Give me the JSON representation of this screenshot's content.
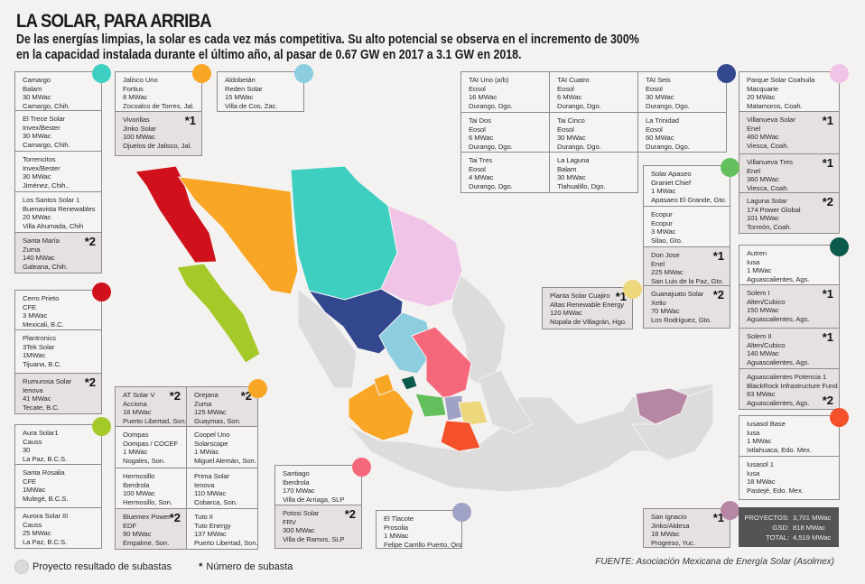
{
  "header": {
    "title": "LA SOLAR, PARA ARRIBA",
    "subtitle_line1": "De las energías limpias, la solar es cada vez más competitiva. Su alto potencial se observa en el incremento de 300%",
    "subtitle_line2": "en la capacidad instalada durante el último año, al pasar de 0.67 GW en 2017 a 3.1 GW en 2018."
  },
  "groups": [
    {
      "state": "Chihuahua",
      "color": "#3ecfc1",
      "items": [
        {
          "lines": [
            "Camargo",
            "Balam",
            "30 MWac",
            "Camargo, Chih."
          ],
          "auction": ""
        },
        {
          "lines": [
            "El Trece Solar",
            "Invex/Bester",
            "30 MWac",
            "Camargo, Chih."
          ],
          "auction": ""
        },
        {
          "lines": [
            "Torrencitos",
            "Invex/Bester",
            "30 MWac",
            "Jiménez, Chih.."
          ],
          "auction": ""
        },
        {
          "lines": [
            "Los Santos Solar 1",
            "Buenavista Renewables",
            "20 MWac",
            "Villa Ahumada, Chih"
          ],
          "auction": ""
        },
        {
          "lines": [
            "Santa María",
            "Zuma",
            "140 MWac",
            "Galeana, Chih."
          ],
          "auction": "*2"
        }
      ]
    },
    {
      "state": "Jalisco",
      "color": "#f8a624",
      "items": [
        {
          "lines": [
            "Jalisco Uno",
            "Fortius",
            "8 MWac",
            "Zocoalco de Torres, Jal."
          ],
          "auction": ""
        },
        {
          "lines": [
            "Vivorillas",
            "Jinko Solar",
            "100 MWac",
            "Ojuelos de Jalisco, Jal."
          ],
          "auction": "*1"
        }
      ]
    },
    {
      "state": "Zacatecas",
      "color": "#8ccde0",
      "items": [
        {
          "lines": [
            "Aldobetán",
            "Reden Solar",
            "15 MWac",
            "Villa de Cos, Zac."
          ],
          "auction": ""
        }
      ]
    },
    {
      "state": "Durango",
      "color": "#33478f",
      "items": [
        {
          "lines": [
            "TAI Uno (a/b)",
            "Eosol",
            "16 MWac",
            "Durango, Dgo."
          ],
          "auction": ""
        },
        {
          "lines": [
            "TAI Cuatro",
            "Eosol",
            "6 MWac",
            "Durango, Dgo."
          ],
          "auction": ""
        },
        {
          "lines": [
            "TAI Seis",
            "Eosol",
            "30 MWac",
            "Durango, Dgo."
          ],
          "auction": ""
        },
        {
          "lines": [
            "Tai Dos",
            "Eosol",
            "6 MWac",
            "Durango, Dgo."
          ],
          "auction": ""
        },
        {
          "lines": [
            "Tai Cinco",
            "Eosol",
            "30 MWac",
            "Durango, Dgo."
          ],
          "auction": ""
        },
        {
          "lines": [
            "La Trinidad",
            "Eosol",
            "60 MWac",
            "Durango, Dgo."
          ],
          "auction": ""
        },
        {
          "lines": [
            "Tai Tres",
            "Eosol",
            "4 MWac",
            "Durango, Dgo."
          ],
          "auction": ""
        },
        {
          "lines": [
            "La Laguna",
            "Balam",
            "30 MWac",
            "Tlahualillo, Dgo."
          ],
          "auction": ""
        }
      ]
    },
    {
      "state": "Coahuila",
      "color": "#f0c4e6",
      "items": [
        {
          "lines": [
            "Parque Solar Coahuila",
            "Macquarie",
            "20 MWac",
            "Matamoros, Coah."
          ],
          "auction": ""
        },
        {
          "lines": [
            "Villanueva Solar",
            "Enel",
            "460 MWac",
            "Viesca, Coah."
          ],
          "auction": "*1"
        },
        {
          "lines": [
            "Villanueva Tres",
            "Enel",
            "360 MWac",
            "Viesca, Coah."
          ],
          "auction": "*1"
        },
        {
          "lines": [
            "Laguna Solar",
            "174 Power Global",
            "101 MWac",
            "Torreón, Coah."
          ],
          "auction": "*2"
        }
      ]
    },
    {
      "state": "Guanajuato",
      "color": "#63c05d",
      "items": [
        {
          "lines": [
            "Solar Apaseo",
            "Graniet Chief",
            "1 MWac",
            "Apasaeo El Grande, Gto."
          ],
          "auction": ""
        },
        {
          "lines": [
            "Ecopur",
            "Ecopur",
            "3 MWac",
            "Silao, Gto."
          ],
          "auction": ""
        },
        {
          "lines": [
            "Don Jose",
            "Enel",
            "225 MWac",
            "San Luis de la Paz, Gto."
          ],
          "auction": "*1"
        },
        {
          "lines": [
            "Guanajuato Solar",
            "Xelio",
            "70 MWac",
            "Los Rodríguez, Gto."
          ],
          "auction": "*2"
        }
      ]
    },
    {
      "state": "Hidalgo",
      "color": "#ecd77c",
      "items": [
        {
          "lines": [
            "Planta Solar Cuajiro",
            "Altas Renewable Energy",
            "120 MWac",
            "Nopala de Villagrán, Hgo."
          ],
          "auction": "*1"
        }
      ]
    },
    {
      "state": "Aguascalientes",
      "color": "#0b5a4b",
      "items": [
        {
          "lines": [
            "Autren",
            "Iusa",
            "1 MWac",
            "Aguascalientes, Ags."
          ],
          "auction": ""
        },
        {
          "lines": [
            "Solem I",
            "Alten/Cubico",
            "150 MWac",
            "Aguascalientes, Ags."
          ],
          "auction": "*1"
        },
        {
          "lines": [
            "Solem II",
            "Alten/Cubico",
            "140 MWac",
            "Aguascalientes, Ags."
          ],
          "auction": "*1"
        },
        {
          "lines": [
            "Aguascalientes Potencia 1",
            "BlackRock Infrastructure Fund II",
            "63 MWac",
            "Aguascalientes, Ags."
          ],
          "auction": "*2",
          "auction_bottom": true
        }
      ]
    },
    {
      "state": "Baja California",
      "color": "#d0101b",
      "items": [
        {
          "lines": [
            "Cerro Prieto",
            "CFE",
            "3 MWac",
            "Mexicali, B.C."
          ],
          "auction": ""
        },
        {
          "lines": [
            "Plantronics",
            "3Tek Solar",
            "1MWac",
            "Tijuana, B.C."
          ],
          "auction": ""
        },
        {
          "lines": [
            "Rumurosa Solar",
            "Ienova",
            "41 MWac",
            "Tecate, B.C."
          ],
          "auction": "*2"
        }
      ]
    },
    {
      "state": "Sonora",
      "color": "#f8a624",
      "items": [
        {
          "lines": [
            "AT Solar V",
            "Acciona",
            "18 MWac",
            "Puerto Libertad, Son."
          ],
          "auction": "*2"
        },
        {
          "lines": [
            "Orejana",
            "Zuma",
            "125 MWac",
            "Guaymas, Son."
          ],
          "auction": "*2"
        },
        {
          "lines": [
            "Oompas",
            "Oompas / COCEF",
            "1 MWac",
            "Nogales, Son."
          ],
          "auction": ""
        },
        {
          "lines": [
            "Coopel Uno",
            "Solarscape",
            "1 MWac",
            "Miguel Alemán, Son."
          ],
          "auction": ""
        },
        {
          "lines": [
            "Hermosillo",
            "Iberdrola",
            "100 MWac",
            "Hermosillo, Son."
          ],
          "auction": ""
        },
        {
          "lines": [
            "Prima Solar",
            "Ienova",
            "110 MWac",
            "Cobarca, Son."
          ],
          "auction": ""
        },
        {
          "lines": [
            "Bluemex Power",
            "EDF",
            "90 MWac",
            "Empalme, Son."
          ],
          "auction": "*2"
        },
        {
          "lines": [
            "Tuto II",
            "Tuto Energy",
            "137 MWac",
            "Puerto Libertad, Son."
          ],
          "auction": ""
        }
      ]
    },
    {
      "state": "Baja California Sur",
      "color": "#a6c92a",
      "items": [
        {
          "lines": [
            "Aura Solar1",
            "Causs",
            "30",
            "La Paz, B.C.S."
          ],
          "auction": ""
        },
        {
          "lines": [
            "Santa Rosalia",
            "CFE",
            "1MWac",
            "Mulegé, B.C.S."
          ],
          "auction": ""
        },
        {
          "lines": [
            "Aurora Solar III",
            "Causs",
            "25 MWac",
            "La Paz, B.C.S."
          ],
          "auction": ""
        }
      ]
    },
    {
      "state": "San Luis Potosí",
      "color": "#f5677a",
      "items": [
        {
          "lines": [
            "Santiago",
            "Iberdrola",
            "170 MWac",
            "Villa de Arriaga, SLP"
          ],
          "auction": ""
        },
        {
          "lines": [
            "Potosi Solar",
            "FRV",
            "300 MWac",
            "Villa de Ramos, SLP"
          ],
          "auction": "*2"
        }
      ]
    },
    {
      "state": "Querétaro",
      "color": "#9fa2c4",
      "items": [
        {
          "lines": [
            "El Tlacote",
            "Prosolia",
            "1 MWac",
            "Felipe Carrillo Puerto, Qro"
          ],
          "auction": ""
        }
      ]
    },
    {
      "state": "Estado de México",
      "color": "#f4502a",
      "items": [
        {
          "lines": [
            "Iusasol Base",
            "Iusa",
            "1 MWac",
            "Ixtlahuaca, Edo. Mex."
          ],
          "auction": ""
        },
        {
          "lines": [
            "Iusasol 1",
            "Iusa",
            "18 MWac",
            "Pastejé, Edo. Mex."
          ],
          "auction": ""
        }
      ]
    },
    {
      "state": "Yucatán",
      "color": "#b686a5",
      "items": [
        {
          "lines": [
            "San Ignacio",
            "Jinko/Aldesa",
            "18 MWac",
            "Progreso, Yuc."
          ],
          "auction": "*1"
        }
      ]
    }
  ],
  "totals": {
    "rows": [
      {
        "label": "PROYECTOS:",
        "value": "3,701 MWac"
      },
      {
        "label": "GSD:",
        "value": "818 MWac"
      },
      {
        "label": "TOTAL:",
        "value": "4,519 MWac"
      }
    ]
  },
  "legend": {
    "auction_project": "Proyecto resultado de subastas",
    "star_symbol": "*",
    "auction_number": "Número de subasta"
  },
  "source": "FUENTE: Asociación Mexicana de Energía Solar (Asolmex)",
  "map_colors": {
    "base": "#dddbdb",
    "border": "#f4f2f1"
  }
}
